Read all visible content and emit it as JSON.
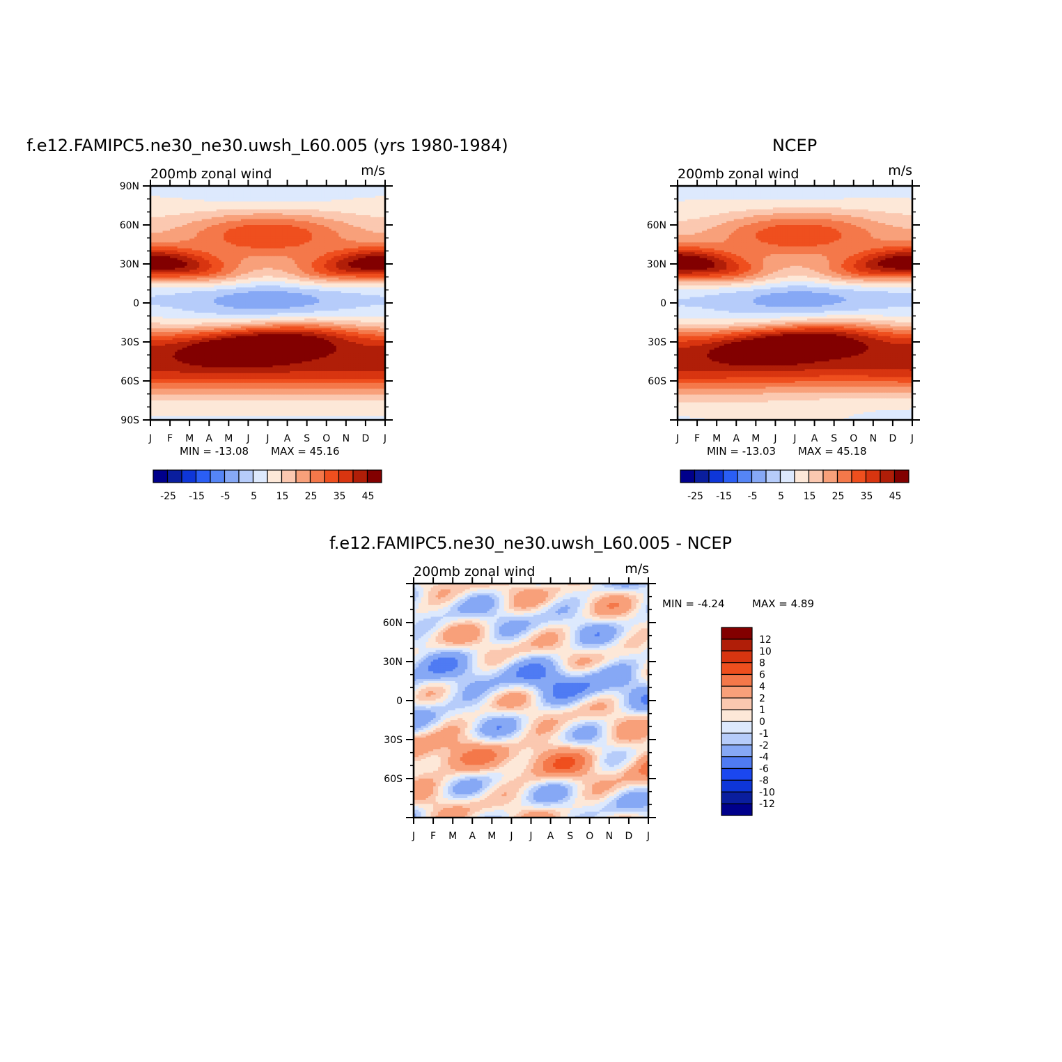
{
  "panels": [
    {
      "id": "model",
      "title": "f.e12.FAMIPC5.ne30_ne30.uwsh_L60.005 (yrs 1980-1984)",
      "left_label": "200mb zonal wind",
      "right_label": "m/s",
      "min_text": "MIN = -13.08",
      "max_text": "MAX = 45.16",
      "colorbar_labels": [
        "-25",
        "-15",
        "-5",
        "5",
        "15",
        "25",
        "35",
        "45"
      ]
    },
    {
      "id": "obs",
      "title": "NCEP",
      "left_label": "200mb zonal wind",
      "right_label": "m/s",
      "min_text": "MIN = -13.03",
      "max_text": "MAX = 45.18",
      "colorbar_labels": [
        "-25",
        "-15",
        "-5",
        "5",
        "15",
        "25",
        "35",
        "45"
      ]
    },
    {
      "id": "diff",
      "title": "f.e12.FAMIPC5.ne30_ne30.uwsh_L60.005 - NCEP",
      "left_label": "200mb zonal wind",
      "right_label": "m/s",
      "min_text": "MIN = -4.24",
      "max_text": "MAX = 4.89",
      "colorbar_labels": [
        "12",
        "10",
        "8",
        "6",
        "4",
        "2",
        "1",
        "0",
        "-1",
        "-2",
        "-4",
        "-6",
        "-8",
        "-10",
        "-12"
      ]
    }
  ],
  "chart_data": [
    {
      "type": "heatmap",
      "title": "f.e12.FAMIPC5.ne30_ne30.uwsh_L60.005 (yrs 1980-1984)",
      "subtitle_left": "200mb zonal wind",
      "units": "m/s",
      "x_ticks": [
        "J",
        "F",
        "M",
        "A",
        "M",
        "J",
        "J",
        "A",
        "S",
        "O",
        "N",
        "D",
        "J"
      ],
      "y_ticks": [
        "90N",
        "60N",
        "30N",
        "0",
        "30S",
        "60S",
        "90S"
      ],
      "y_tick_values": [
        90,
        60,
        30,
        0,
        -30,
        -60,
        -90
      ],
      "xlim": [
        0,
        12
      ],
      "ylim": [
        -90,
        90
      ],
      "levels": [
        -30,
        -25,
        -20,
        -15,
        -10,
        -5,
        0,
        5,
        10,
        15,
        20,
        25,
        30,
        35,
        40,
        45
      ],
      "min": -13.08,
      "max": 45.16
    },
    {
      "type": "heatmap",
      "title": "NCEP",
      "subtitle_left": "200mb zonal wind",
      "units": "m/s",
      "x_ticks": [
        "J",
        "F",
        "M",
        "A",
        "M",
        "J",
        "J",
        "A",
        "S",
        "O",
        "N",
        "D",
        "J"
      ],
      "y_ticks": [
        "60N",
        "30N",
        "0",
        "30S",
        "60S"
      ],
      "y_tick_values": [
        60,
        30,
        0,
        -30,
        -60
      ],
      "xlim": [
        0,
        12
      ],
      "ylim": [
        -90,
        90
      ],
      "levels": [
        -30,
        -25,
        -20,
        -15,
        -10,
        -5,
        0,
        5,
        10,
        15,
        20,
        25,
        30,
        35,
        40,
        45
      ],
      "min": -13.03,
      "max": 45.18
    },
    {
      "type": "heatmap",
      "title": "f.e12.FAMIPC5.ne30_ne30.uwsh_L60.005 - NCEP",
      "subtitle_left": "200mb zonal wind",
      "units": "m/s",
      "x_ticks": [
        "J",
        "F",
        "M",
        "A",
        "M",
        "J",
        "J",
        "A",
        "S",
        "O",
        "N",
        "D",
        "J"
      ],
      "y_ticks": [
        "60N",
        "30N",
        "0",
        "30S",
        "60S"
      ],
      "y_tick_values": [
        60,
        30,
        0,
        -30,
        -60
      ],
      "xlim": [
        0,
        12
      ],
      "ylim": [
        -90,
        90
      ],
      "levels": [
        -12,
        -10,
        -8,
        -6,
        -4,
        -2,
        -1,
        0,
        1,
        2,
        4,
        6,
        8,
        10,
        12
      ],
      "min": -4.24,
      "max": 4.89
    }
  ],
  "colors": {
    "full": [
      "#00008b",
      "#0a1e9e",
      "#0e36d8",
      "#2a5ef5",
      "#5585f5",
      "#86a8f5",
      "#b6ccfa",
      "#dde9fd",
      "#fde8d8",
      "#fbc8b0",
      "#f8a07a",
      "#f4784a",
      "#ef4f1e",
      "#d83510",
      "#b01e08",
      "#820000"
    ],
    "diff": [
      "#00008b",
      "#0a1e9e",
      "#0e36d8",
      "#1b47f0",
      "#4f7bf3",
      "#86a8f5",
      "#b6ccfa",
      "#dde9fd",
      "#fde8d8",
      "#fbc8b0",
      "#f8a07a",
      "#f4784a",
      "#ef4f1e",
      "#d83510",
      "#b01e08",
      "#820000"
    ]
  }
}
